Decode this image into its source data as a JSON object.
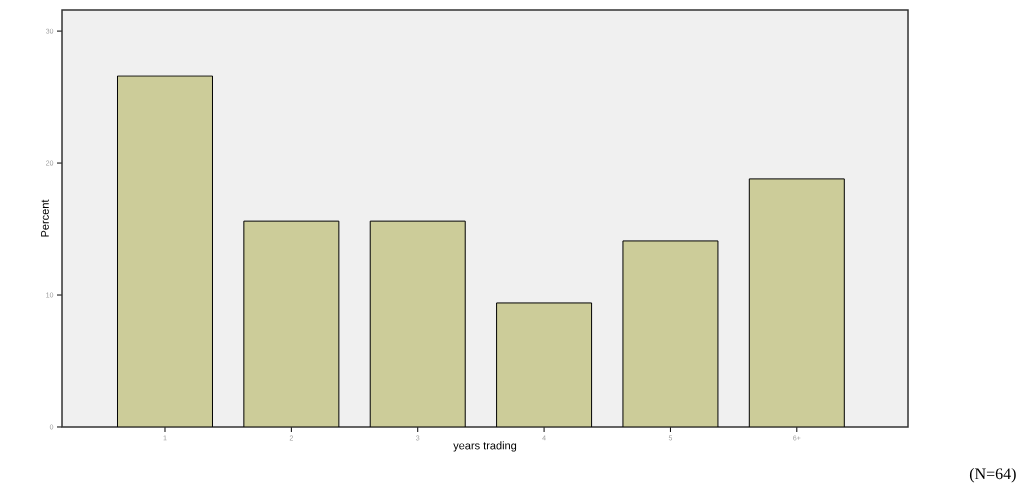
{
  "chart_data": {
    "type": "bar",
    "xlabel": "years trading",
    "ylabel": "Percent",
    "categories": [
      "1",
      "2",
      "3",
      "4",
      "5",
      "6+"
    ],
    "values": [
      26.6,
      15.6,
      15.6,
      9.4,
      14.1,
      18.8
    ],
    "color": "#cccc99",
    "ylim": [
      0,
      31.6
    ],
    "yticks": [
      0,
      10,
      20,
      30
    ],
    "grid": false,
    "annotations": [
      "(N=64)"
    ]
  }
}
